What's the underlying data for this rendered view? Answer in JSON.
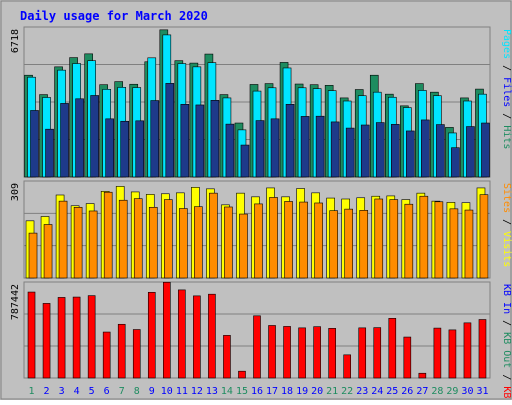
{
  "chart_data": {
    "type": "bar",
    "title": "Daily usage for March 2020",
    "categories": [
      "1",
      "2",
      "3",
      "4",
      "5",
      "6",
      "7",
      "8",
      "9",
      "10",
      "11",
      "12",
      "13",
      "14",
      "15",
      "16",
      "17",
      "18",
      "19",
      "20",
      "21",
      "22",
      "23",
      "24",
      "25",
      "26",
      "27",
      "28",
      "29",
      "30",
      "31"
    ],
    "weekend_days": [
      "1",
      "7",
      "8",
      "14",
      "15",
      "21",
      "22",
      "28",
      "29"
    ],
    "colors": {
      "background": "#c0c0c0",
      "border": "#808080",
      "title": "#0000ff",
      "pages": "#1e8c60",
      "files": "#00e5ff",
      "hits": "#1e8c60",
      "visits": "#ffff00",
      "sites": "#ff8c00",
      "kb_f": "#ff0000",
      "kb_out": "#1e8c60",
      "kb_in": "#0000ff",
      "kb_f_label": "#ff0000",
      "weekday_label": "#0000ff",
      "weekend_label": "#1e8c60"
    },
    "panels": [
      {
        "ymax_label": "6718",
        "ymax": 6718,
        "legend": [
          {
            "text": "Hits",
            "color": "#1e8c60"
          },
          {
            "text": "Files",
            "color": "#0000ff"
          },
          {
            "text": "Pages",
            "color": "#00e5ff"
          }
        ],
        "series": [
          {
            "name": "Hits",
            "color": "#1e8c60",
            "values": [
              4620,
              3740,
              5000,
              5420,
              5590,
              4190,
              4330,
              4210,
              5230,
              6680,
              5280,
              5170,
              5580,
              3740,
              2450,
              4200,
              4240,
              5200,
              4220,
              4190,
              4160,
              3590,
              3970,
              4620,
              3760,
              3230,
              4240,
              3850,
              2250,
              3590,
              3990
            ]
          },
          {
            "name": "Files",
            "color": "#00e5ff",
            "values": [
              4530,
              3610,
              4850,
              5150,
              5280,
              3980,
              4070,
              4060,
              5410,
              6450,
              5150,
              5000,
              5190,
              3590,
              2140,
              3900,
              4050,
              4950,
              4050,
              4010,
              3920,
              3450,
              3690,
              3850,
              3620,
              3150,
              3930,
              3690,
              2000,
              3450,
              3760
            ]
          },
          {
            "name": "Pages",
            "color": "#1e3a8a",
            "values": [
              3020,
              2170,
              3340,
              3550,
              3700,
              2640,
              2530,
              2550,
              3470,
              4250,
              3300,
              3270,
              3480,
              2400,
              1450,
              2560,
              2640,
              3300,
              2750,
              2760,
              2500,
              2220,
              2360,
              2470,
              2390,
              2090,
              2590,
              2380,
              1330,
              2290,
              2450
            ]
          }
        ]
      },
      {
        "ymax_label": "309",
        "ymax": 309,
        "legend": [
          {
            "text": "Visits",
            "color": "#ffff00"
          },
          {
            "text": "Sites",
            "color": "#ff8c00"
          }
        ],
        "series": [
          {
            "name": "Visits",
            "color": "#ffff00",
            "values": [
              186,
              200,
              270,
              235,
              242,
              282,
              298,
              280,
              272,
              274,
              277,
              295,
              290,
              238,
              276,
              264,
              293,
              264,
              291,
              277,
              260,
              257,
              261,
              266,
              267,
              255,
              276,
              250,
              246,
              245,
              293
            ]
          },
          {
            "name": "Sites",
            "color": "#ff8c00",
            "values": [
              146,
              174,
              250,
              230,
              218,
              279,
              253,
              258,
              230,
              255,
              226,
              232,
              276,
              231,
              208,
              241,
              262,
              249,
              247,
              244,
              219,
              224,
              220,
              257,
              255,
              240,
              266,
              248,
              225,
              221,
              271
            ]
          }
        ]
      },
      {
        "ymax_label": "787442",
        "ymax": 787442,
        "legend": [
          {
            "text": "KB F",
            "color": "#ff0000"
          },
          {
            "text": "KB Out",
            "color": "#1e8c60"
          },
          {
            "text": "KB In",
            "color": "#0000ff"
          }
        ],
        "series": [
          {
            "name": "KB F",
            "color": "#ff0000",
            "values": [
              720000,
              625000,
              675000,
              678000,
              690000,
              385000,
              450000,
              406000,
              718000,
              802000,
              738000,
              688000,
              702000,
              357000,
              57000,
              521000,
              440000,
              432000,
              420000,
              430000,
              416000,
              194000,
              420000,
              422000,
              500000,
              343000,
              40000,
              418000,
              403000,
              462000,
              490000
            ]
          }
        ]
      }
    ]
  }
}
